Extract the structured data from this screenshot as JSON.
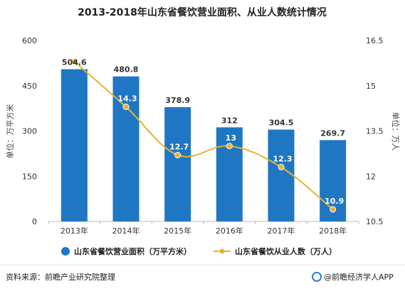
{
  "chart_data": {
    "type": "bar",
    "title": "2013-2018年山东省餐饮营业面积、从业人数统计情况",
    "categories": [
      "2013年",
      "2014年",
      "2015年",
      "2016年",
      "2017年",
      "2018年"
    ],
    "series": [
      {
        "name": "山东省餐饮营业面积（万平方米）",
        "type": "bar",
        "axis": "left",
        "color": "#1f77c3",
        "values": [
          504.6,
          480.8,
          378.9,
          312,
          304.5,
          269.7
        ],
        "labels": [
          "504.6",
          "480.8",
          "378.9",
          "312",
          "304.5",
          "269.7"
        ]
      },
      {
        "name": "山东省餐饮从业人数（万人）",
        "type": "line",
        "axis": "right",
        "color": "#e8b230",
        "values": [
          15.8,
          14.3,
          12.7,
          13,
          12.3,
          10.9
        ],
        "labels": [
          "",
          "14.3",
          "12.7",
          "13",
          "12.3",
          "10.9"
        ]
      }
    ],
    "yleft": {
      "label": "单位：万平方米",
      "min": 0,
      "max": 600,
      "ticks": [
        "0",
        "150",
        "300",
        "450",
        "600"
      ]
    },
    "yright": {
      "label": "单位：万人",
      "min": 10.5,
      "max": 16.5,
      "ticks": [
        "10.5",
        "12",
        "13.5",
        "15",
        "16.5"
      ]
    },
    "grid": false,
    "legend_position": "bottom"
  },
  "footer": {
    "source": "资料来源：前瞻产业研究院整理",
    "brand": "@前瞻经济学人APP"
  }
}
